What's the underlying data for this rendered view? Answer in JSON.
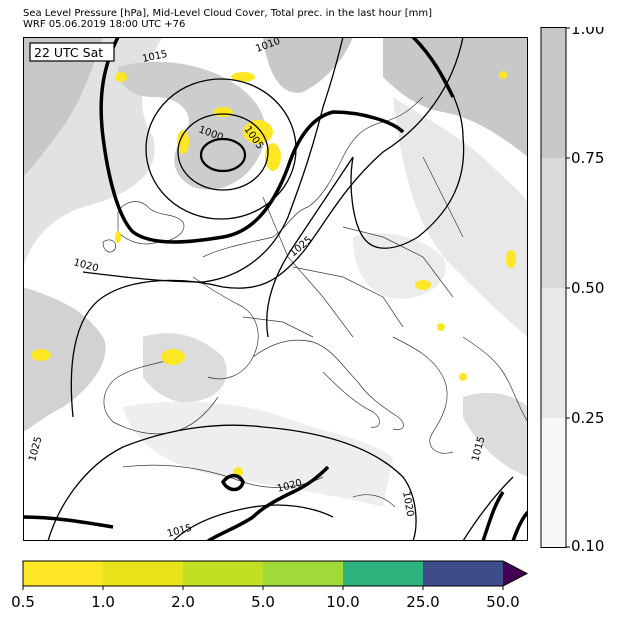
{
  "header": {
    "line1": "Sea Level Pressure [hPa], Mid-Level Cloud Cover, Total prec. in the last hour [mm]",
    "line2": "WRF 05.06.2019 18:00 UTC +76"
  },
  "map": {
    "time_label": "22 UTC Sat",
    "isobar_labels": [
      "1015",
      "1010",
      "1005",
      "1000",
      "1025",
      "1020",
      "1025",
      "1020",
      "1020",
      "1015",
      "1015"
    ]
  },
  "cloud_cover_legend": {
    "ticks": [
      "1.00",
      "0.75",
      "0.50",
      "0.25",
      "0.10"
    ],
    "colors": [
      "#c8c8c8",
      "#d9d9d9",
      "#e8e8e8",
      "#f5f5f5"
    ]
  },
  "precip_legend": {
    "ticks": [
      "0.5",
      "1.0",
      "2.0",
      "5.0",
      "10.0",
      "25.0",
      "50.0"
    ],
    "colors": [
      "#fde725",
      "#e8e419",
      "#c2df23",
      "#a0da39",
      "#2db27d",
      "#3e4c8a",
      "#440154"
    ]
  }
}
